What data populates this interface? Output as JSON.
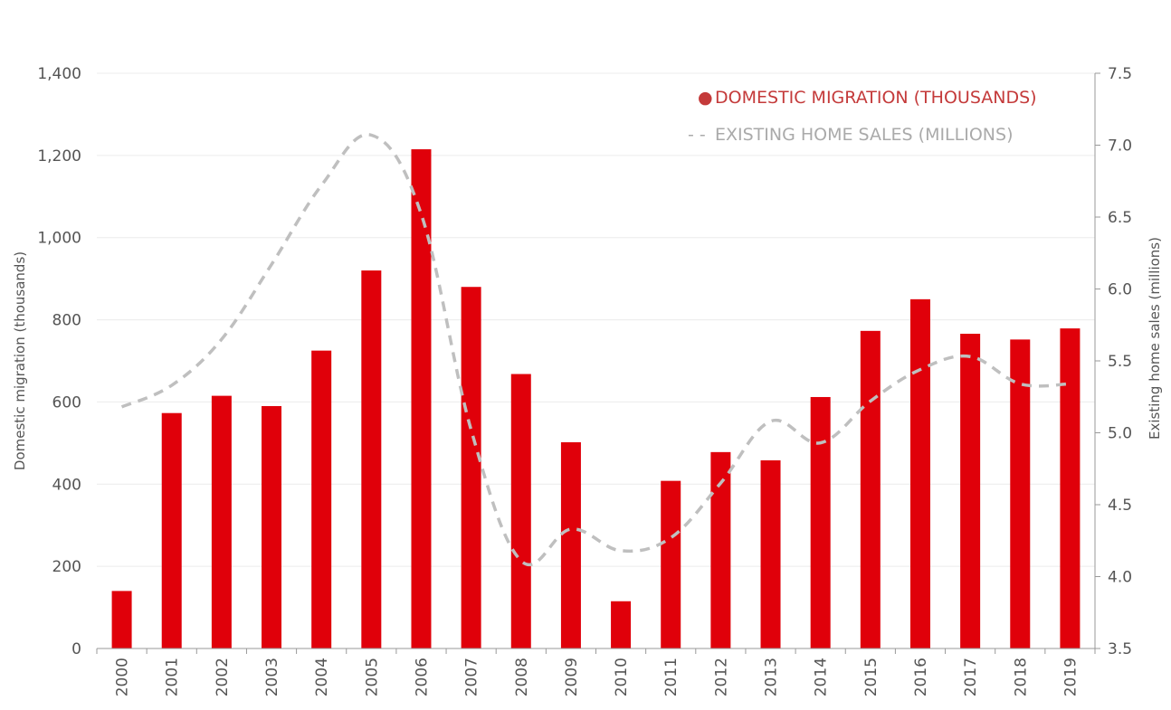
{
  "chart_data": {
    "type": "bar",
    "categories": [
      "2000",
      "2001",
      "2002",
      "2003",
      "2004",
      "2005",
      "2006",
      "2007",
      "2008",
      "2009",
      "2010",
      "2011",
      "2012",
      "2013",
      "2014",
      "2015",
      "2016",
      "2017",
      "2018",
      "2019"
    ],
    "series": [
      {
        "name": "DOMESTIC MIGRATION (THOUSANDS)",
        "type": "bar",
        "axis": "left",
        "color": "#e0000a",
        "values": [
          140,
          573,
          615,
          590,
          725,
          920,
          1215,
          880,
          668,
          502,
          115,
          408,
          478,
          458,
          612,
          773,
          850,
          766,
          752,
          779
        ]
      },
      {
        "name": "EXISTING HOME SALES (MILLIONS)",
        "type": "line",
        "style": "dashed",
        "axis": "right",
        "color": "#bfbfbf",
        "values": [
          5.18,
          5.33,
          5.65,
          6.17,
          6.72,
          7.07,
          6.52,
          5.02,
          4.11,
          4.33,
          4.18,
          4.27,
          4.65,
          5.08,
          4.93,
          5.22,
          5.44,
          5.53,
          5.34,
          5.34
        ]
      }
    ],
    "ylabel": "Domestic migration (thousands)",
    "y2label": "Existing home sales (millions)",
    "xlabel": "",
    "ylim": [
      0,
      1400
    ],
    "y2lim": [
      3.5,
      7.5
    ],
    "yticks": [
      "0",
      "200",
      "400",
      "600",
      "800",
      "1,000",
      "1,200",
      "1,400"
    ],
    "y2ticks": [
      "3.5",
      "4.0",
      "4.5",
      "5.0",
      "5.5",
      "6.0",
      "6.5",
      "7.0",
      "7.5"
    ],
    "grid": true,
    "legend_position": "top-right",
    "legend_markers": {
      "bar": "●",
      "line": "- -"
    }
  }
}
